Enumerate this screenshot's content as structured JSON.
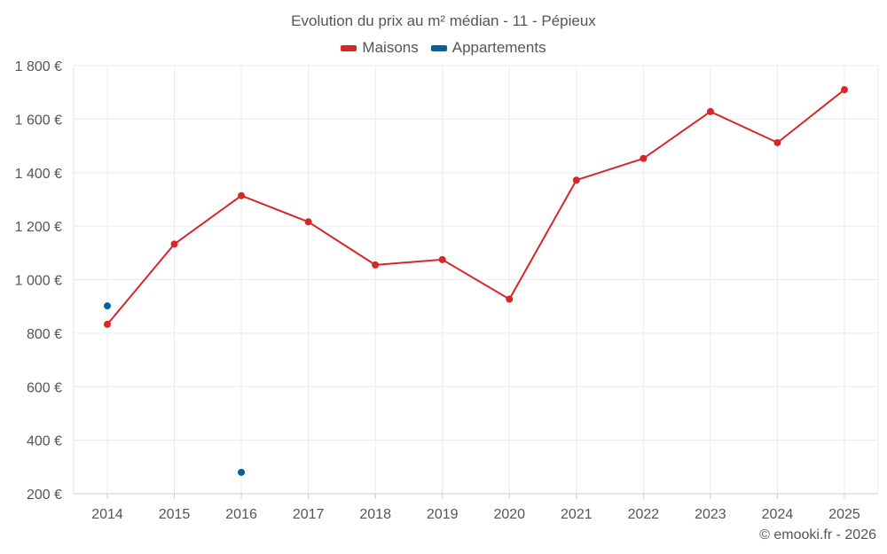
{
  "chart_data": {
    "type": "line",
    "title": "Evolution du prix au m² médian - 11 - Pépieux",
    "categories": [
      "2014",
      "2015",
      "2016",
      "2017",
      "2018",
      "2019",
      "2020",
      "2021",
      "2022",
      "2023",
      "2024",
      "2025"
    ],
    "series": [
      {
        "name": "Maisons",
        "color": "#d62728",
        "mode": "lines+markers",
        "values": [
          833,
          1133,
          1314,
          1216,
          1055,
          1075,
          927,
          1372,
          1453,
          1628,
          1512,
          1710
        ]
      },
      {
        "name": "Appartements",
        "color": "#03629c",
        "mode": "markers",
        "values": [
          902,
          null,
          280,
          null,
          null,
          null,
          null,
          null,
          null,
          null,
          null,
          null
        ]
      }
    ],
    "ylim": [
      200,
      1800
    ],
    "yticks": [
      200,
      400,
      600,
      800,
      1000,
      1200,
      1400,
      1600,
      1800
    ],
    "ytick_labels": [
      "200 €",
      "400 €",
      "600 €",
      "800 €",
      "1 000 €",
      "1 200 €",
      "1 400 €",
      "1 600 €",
      "1 800 €"
    ],
    "xlabel": "",
    "ylabel": "",
    "grid": true,
    "legend_position": "top-center"
  },
  "credit": "© emooki.fr - 2026"
}
